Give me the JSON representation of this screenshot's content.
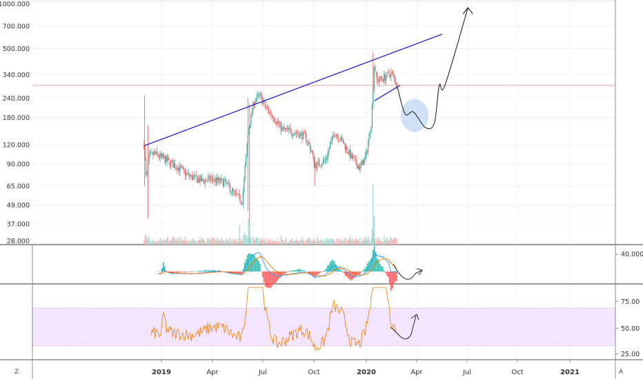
{
  "chart_data": [
    {
      "type": "candlestick",
      "panel": "price",
      "y_scale": "log",
      "ylim": [
        28,
        1000
      ],
      "y_ticks": [
        "1000.000",
        "700.000",
        "500.000",
        "340.000",
        "240.000",
        "180.000",
        "120.000",
        "90.000",
        "65.000",
        "49.000",
        "37.000",
        "28.000"
      ],
      "x_ticks": [
        "2019",
        "Apr",
        "Jul",
        "Oct",
        "2020",
        "Apr",
        "Jul",
        "Oct",
        "2021"
      ],
      "price_path": [
        {
          "d": "2018-12-01",
          "v": 120
        },
        {
          "d": "2018-12-05",
          "v": 70
        },
        {
          "d": "2018-12-10",
          "v": 100
        },
        {
          "d": "2018-12-20",
          "v": 105
        },
        {
          "d": "2019-01-10",
          "v": 95
        },
        {
          "d": "2019-02-01",
          "v": 85
        },
        {
          "d": "2019-02-20",
          "v": 75
        },
        {
          "d": "2019-03-15",
          "v": 70
        },
        {
          "d": "2019-04-01",
          "v": 72
        },
        {
          "d": "2019-04-25",
          "v": 68
        },
        {
          "d": "2019-05-10",
          "v": 58
        },
        {
          "d": "2019-05-25",
          "v": 52
        },
        {
          "d": "2019-06-05",
          "v": 150
        },
        {
          "d": "2019-06-15",
          "v": 230
        },
        {
          "d": "2019-06-25",
          "v": 250
        },
        {
          "d": "2019-07-05",
          "v": 210
        },
        {
          "d": "2019-07-20",
          "v": 180
        },
        {
          "d": "2019-08-05",
          "v": 150
        },
        {
          "d": "2019-08-25",
          "v": 145
        },
        {
          "d": "2019-09-15",
          "v": 135
        },
        {
          "d": "2019-09-25",
          "v": 110
        },
        {
          "d": "2019-10-01",
          "v": 88
        },
        {
          "d": "2019-10-20",
          "v": 95
        },
        {
          "d": "2019-11-05",
          "v": 145
        },
        {
          "d": "2019-11-20",
          "v": 125
        },
        {
          "d": "2019-12-05",
          "v": 100
        },
        {
          "d": "2019-12-20",
          "v": 85
        },
        {
          "d": "2019-12-31",
          "v": 100
        },
        {
          "d": "2020-01-10",
          "v": 170
        },
        {
          "d": "2020-01-15",
          "v": 400
        },
        {
          "d": "2020-01-20",
          "v": 310
        },
        {
          "d": "2020-02-05",
          "v": 330
        },
        {
          "d": "2020-02-15",
          "v": 350
        },
        {
          "d": "2020-02-25",
          "v": 290
        }
      ],
      "annotations": {
        "resistance_trendline": [
          {
            "d": "2018-12-01",
            "v": 118
          },
          {
            "d": "2020-05-15",
            "v": 620
          }
        ],
        "support_trendline": [
          {
            "d": "2020-01-15",
            "v": 230
          },
          {
            "d": "2020-03-01",
            "v": 290
          }
        ],
        "horizontal_level": 290,
        "projection_path": [
          {
            "d": "2020-02-25",
            "v": 285
          },
          {
            "d": "2020-03-10",
            "v": 190
          },
          {
            "d": "2020-03-25",
            "v": 195
          },
          {
            "d": "2020-04-15",
            "v": 155
          },
          {
            "d": "2020-05-01",
            "v": 165
          },
          {
            "d": "2020-05-10",
            "v": 290
          },
          {
            "d": "2020-05-20",
            "v": 290
          },
          {
            "d": "2020-06-30",
            "v": 920
          }
        ],
        "highlight_circle": {
          "d": "2020-03-27",
          "v": 185
        },
        "colors": {
          "trendline": "#2020c8",
          "level": "#f0a0a0",
          "projection": "#222222",
          "circle": "#a9c8ee"
        }
      }
    },
    {
      "type": "line",
      "panel": "macd",
      "y_ticks": [
        "40.000"
      ],
      "colors": {
        "macd": "#2196f3",
        "signal": "#ff6d00",
        "hist_up": "#26a69a",
        "hist_down": "#ef5350"
      }
    },
    {
      "type": "line",
      "panel": "rsi",
      "ylim": [
        15,
        95
      ],
      "y_ticks": [
        "75.00",
        "50.00",
        "25.00"
      ],
      "band": [
        30,
        70
      ],
      "colors": {
        "rsi": "#f57c00",
        "band": "#f3e5fd"
      }
    }
  ],
  "corner_left": "Z",
  "corner_right": "A"
}
